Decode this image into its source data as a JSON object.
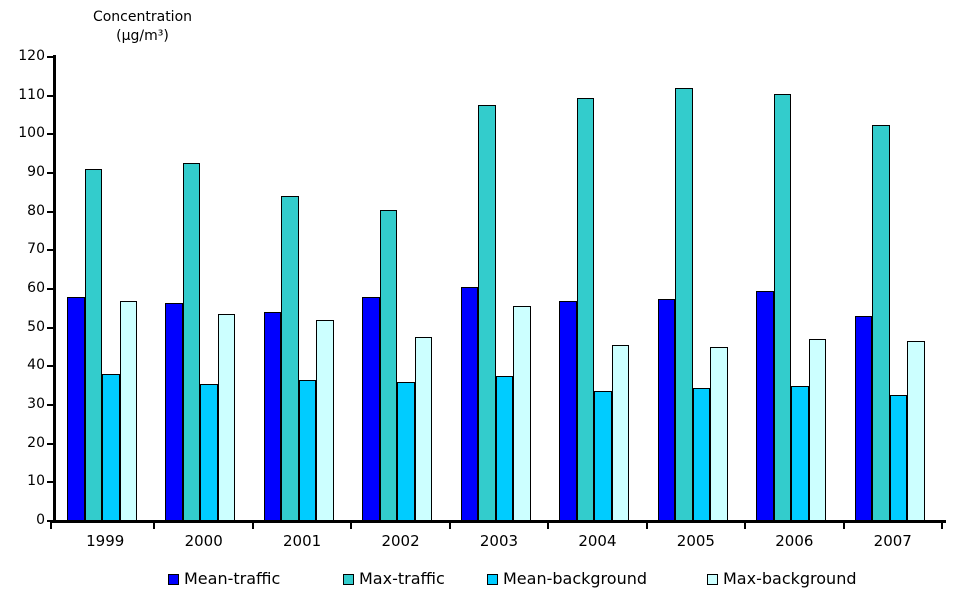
{
  "chart_data": {
    "type": "bar",
    "title": "Concentration (µg/m³)",
    "title_lines": [
      "Concentration",
      "(µg/m³)"
    ],
    "xlabel": "",
    "ylabel": "Concentration (µg/m³)",
    "categories": [
      "1999",
      "2000",
      "2001",
      "2002",
      "2003",
      "2004",
      "2005",
      "2006",
      "2007"
    ],
    "series": [
      {
        "name": "Mean-traffic",
        "color": "#0000FF",
        "values": [
          58,
          56.5,
          54,
          58,
          60.5,
          57,
          57.5,
          59.5,
          53
        ]
      },
      {
        "name": "Max-traffic",
        "color": "#33CCCC",
        "values": [
          91,
          92.5,
          84,
          80.5,
          107.5,
          109.5,
          112,
          110.5,
          102.5
        ]
      },
      {
        "name": "Mean-background",
        "color": "#00CCFF",
        "values": [
          38,
          35.5,
          36.5,
          36,
          37.5,
          33.5,
          34.5,
          35,
          32.5
        ]
      },
      {
        "name": "Max-background",
        "color": "#CCFFFF",
        "values": [
          57,
          53.5,
          52,
          47.5,
          55.5,
          45.5,
          45,
          47,
          46.5
        ]
      }
    ],
    "ylim": [
      0,
      120
    ],
    "yticks": [
      0,
      10,
      20,
      30,
      40,
      50,
      60,
      70,
      80,
      90,
      100,
      110,
      120
    ],
    "grid": false,
    "legend_position": "bottom",
    "bar_border_color": "#000000",
    "axis_color": "#000000"
  },
  "legend": {
    "items": [
      {
        "label": "Mean-traffic",
        "color": "#0000FF"
      },
      {
        "label": "Max-traffic",
        "color": "#33CCCC"
      },
      {
        "label": "Mean-background",
        "color": "#00CCFF"
      },
      {
        "label": "Max-background",
        "color": "#CCFFFF"
      }
    ]
  }
}
